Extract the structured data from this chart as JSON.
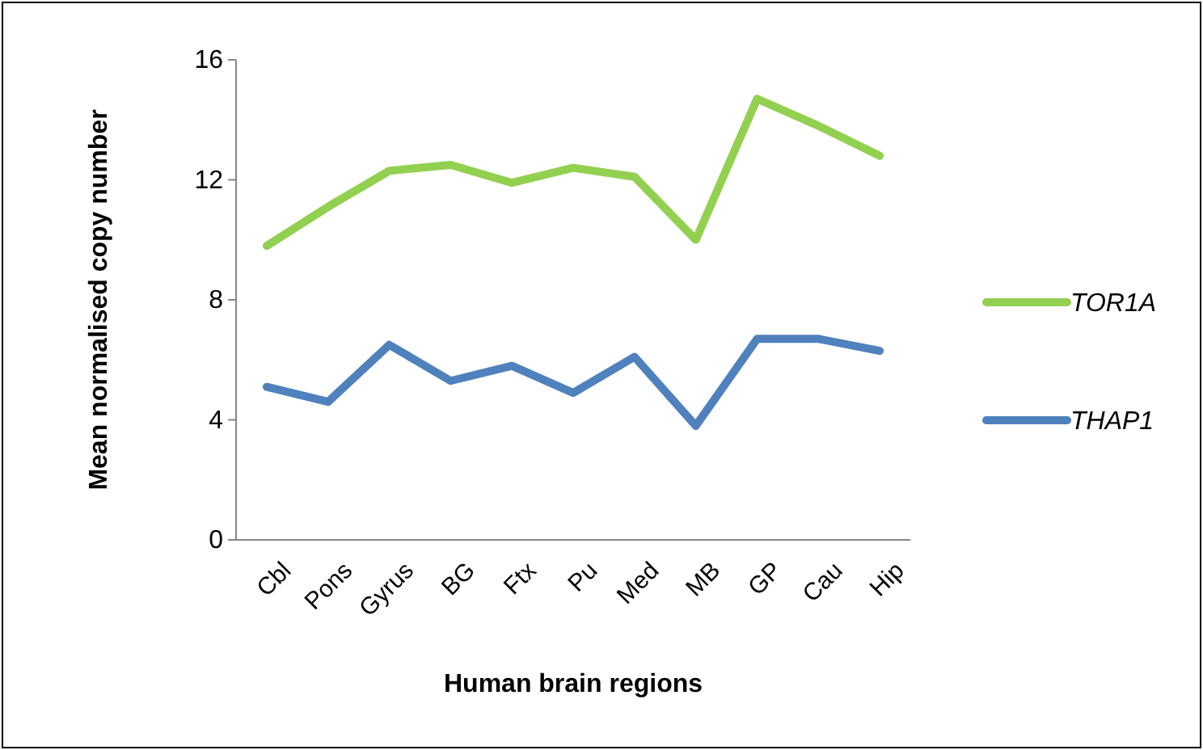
{
  "chart_data": {
    "type": "line",
    "xlabel": "Human brain regions",
    "ylabel": "Mean normalised copy number",
    "categories": [
      "Cbl",
      "Pons",
      "Gyrus",
      "BG",
      "Ftx",
      "Pu",
      "Med",
      "MB",
      "GP",
      "Cau",
      "Hip"
    ],
    "series": [
      {
        "name": "TOR1A",
        "color": "#92d050",
        "values": [
          9.8,
          11.1,
          12.3,
          12.5,
          11.9,
          12.4,
          12.1,
          10.0,
          14.7,
          13.8,
          12.8
        ]
      },
      {
        "name": "THAP1",
        "color": "#4f81bd",
        "values": [
          5.1,
          4.6,
          6.5,
          5.3,
          5.8,
          4.9,
          6.1,
          3.8,
          6.7,
          6.7,
          6.3
        ]
      }
    ],
    "ylim": [
      0,
      16
    ],
    "yticks": [
      0,
      4,
      8,
      12,
      16
    ],
    "grid": false,
    "legend": "right",
    "marker": "none",
    "line_style": "solid"
  }
}
